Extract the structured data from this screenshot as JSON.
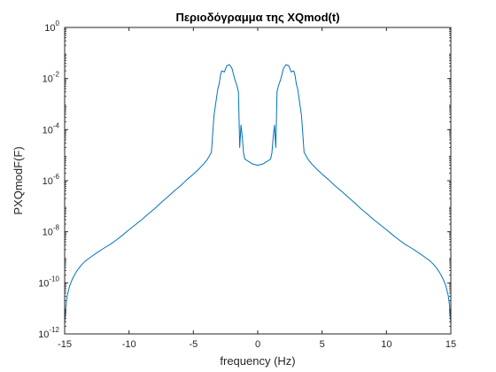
{
  "chart_data": {
    "type": "line",
    "title": "Περιοδόγραμμα της XQmod(t)",
    "xlabel": "frequency (Hz)",
    "ylabel": "PXQmodF(F)",
    "xlim": [
      -15,
      15
    ],
    "ylim": [
      1e-12,
      1
    ],
    "yscale": "log",
    "grid": false,
    "legend": "none",
    "line_color": "#0072bd",
    "x_ticks": [
      {
        "value": -15,
        "label": "-15"
      },
      {
        "value": -10,
        "label": "-10"
      },
      {
        "value": -5,
        "label": "-5"
      },
      {
        "value": 0,
        "label": "0"
      },
      {
        "value": 5,
        "label": "5"
      },
      {
        "value": 10,
        "label": "10"
      },
      {
        "value": 15,
        "label": "15"
      }
    ],
    "y_ticks": [
      {
        "value": 1e-12,
        "base": "10",
        "exp": "-12"
      },
      {
        "value": 1e-10,
        "base": "10",
        "exp": "-10"
      },
      {
        "value": 1e-08,
        "base": "10",
        "exp": "-8"
      },
      {
        "value": 1e-06,
        "base": "10",
        "exp": "-6"
      },
      {
        "value": 0.0001,
        "base": "10",
        "exp": "-4"
      },
      {
        "value": 0.01,
        "base": "10",
        "exp": "-2"
      },
      {
        "value": 1,
        "base": "10",
        "exp": "0"
      }
    ],
    "series": [
      {
        "x": [
          -15.0,
          -14.9,
          -14.8,
          -14.6,
          -14.4,
          -14.2,
          -14.0,
          -13.7,
          -13.4,
          -13.0,
          -12.5,
          -12.0,
          -11.5,
          -11.0,
          -10.5,
          -10.0,
          -9.5,
          -9.0,
          -8.5,
          -8.0,
          -7.5,
          -7.0,
          -6.5,
          -6.0,
          -5.5,
          -5.0,
          -4.6,
          -4.2,
          -3.9,
          -3.6,
          -3.4,
          -3.2,
          -3.1,
          -3.0,
          -2.9,
          -2.8,
          -2.6,
          -2.4,
          -2.2,
          -2.0,
          -1.8,
          -1.6,
          -1.5,
          -1.4,
          -1.3,
          -1.2,
          -1.1,
          -1.0,
          -0.7,
          -0.4,
          0.0,
          0.4,
          0.7,
          1.0,
          1.1,
          1.2,
          1.3,
          1.4,
          1.5,
          1.6,
          1.8,
          2.0,
          2.2,
          2.4,
          2.6,
          2.8,
          2.9,
          3.0,
          3.1,
          3.2,
          3.4,
          3.6,
          3.9,
          4.2,
          4.6,
          5.0,
          5.5,
          6.0,
          6.5,
          7.0,
          7.5,
          8.0,
          8.5,
          9.0,
          9.5,
          10.0,
          10.5,
          11.0,
          11.5,
          12.0,
          12.5,
          13.0,
          13.4,
          13.7,
          14.0,
          14.2,
          14.4,
          14.6,
          14.8,
          14.9,
          15.0
        ],
        "y": [
          2.6e-12,
          1.3e-11,
          3.2e-11,
          8e-11,
          1.4e-10,
          2.2e-10,
          3.2e-10,
          5e-10,
          7.1e-10,
          1e-09,
          1.5e-09,
          2.2e-09,
          3.1e-09,
          4.7e-09,
          7.4e-09,
          1.2e-08,
          1.9e-08,
          3e-08,
          5e-08,
          8.1e-08,
          1.4e-07,
          2.3e-07,
          3.9e-07,
          6.3e-07,
          1.1e-06,
          1.8e-06,
          2.8e-06,
          4.5e-06,
          7e-06,
          1.3e-05,
          0.00035,
          0.0018,
          0.004,
          0.006,
          0.013,
          0.02,
          0.018,
          0.032,
          0.035,
          0.025,
          0.01,
          0.005,
          0.003,
          2e-05,
          0.00015,
          5e-05,
          1.2e-05,
          7e-06,
          5.6e-06,
          4.5e-06,
          4e-06,
          4.5e-06,
          5.6e-06,
          7e-06,
          1.2e-05,
          5e-05,
          0.00015,
          2e-05,
          0.003,
          0.005,
          0.01,
          0.025,
          0.035,
          0.032,
          0.018,
          0.02,
          0.013,
          0.006,
          0.004,
          0.0018,
          0.00035,
          1.3e-05,
          7e-06,
          4.5e-06,
          2.8e-06,
          1.8e-06,
          1.1e-06,
          6.3e-07,
          3.9e-07,
          2.3e-07,
          1.4e-07,
          8.1e-08,
          5e-08,
          3e-08,
          1.9e-08,
          1.2e-08,
          7.4e-09,
          4.7e-09,
          3.1e-09,
          2.2e-09,
          1.5e-09,
          1e-09,
          7.1e-10,
          5e-10,
          3.2e-10,
          2.2e-10,
          1.4e-10,
          8e-11,
          3.2e-11,
          1.3e-11,
          2.6e-12
        ]
      }
    ]
  }
}
